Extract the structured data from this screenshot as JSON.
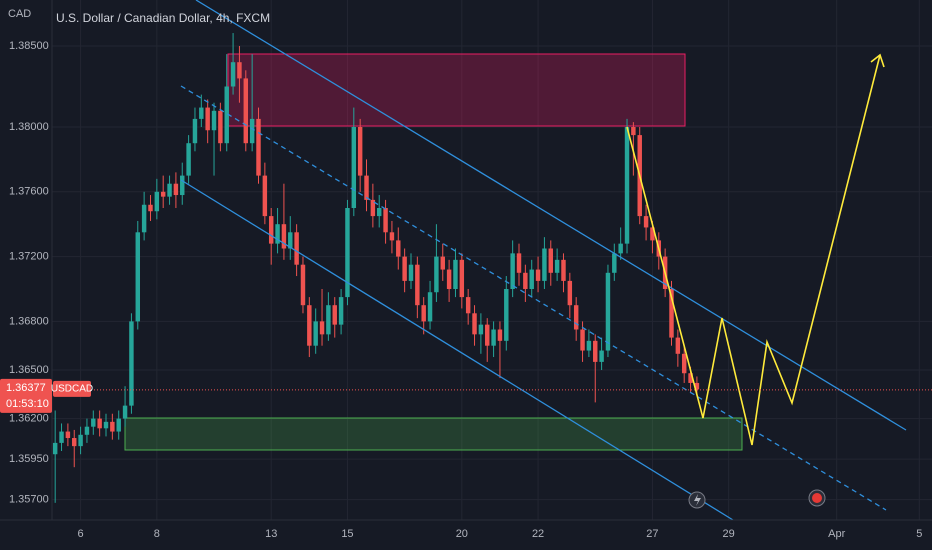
{
  "chart_data": {
    "type": "candlestick",
    "axis_label": "CAD",
    "title": "U.S. Dollar / Canadian Dollar, 4h, FXCM",
    "symbol": "USDCAD",
    "last_price": 1.36377,
    "countdown": "01:53:10",
    "up_color": "#26a69a",
    "down_color": "#ef5350",
    "grid": true,
    "ylim": [
      1.35574,
      1.38784
    ],
    "yticks": [
      {
        "value": 1.385,
        "label": "1.38500"
      },
      {
        "value": 1.38,
        "label": "1.38000"
      },
      {
        "value": 1.376,
        "label": "1.37600"
      },
      {
        "value": 1.372,
        "label": "1.37200"
      },
      {
        "value": 1.368,
        "label": "1.36800"
      },
      {
        "value": 1.365,
        "label": "1.36500"
      },
      {
        "value": 1.362,
        "label": "1.36200"
      },
      {
        "value": 1.3595,
        "label": "1.35950"
      },
      {
        "value": 1.357,
        "label": "1.35700"
      }
    ],
    "xlim": [
      -0.5,
      138
    ],
    "xticks": [
      {
        "value": 4,
        "label": "6"
      },
      {
        "value": 16,
        "label": "8"
      },
      {
        "value": 34,
        "label": "13"
      },
      {
        "value": 46,
        "label": "15"
      },
      {
        "value": 64,
        "label": "20"
      },
      {
        "value": 76,
        "label": "22"
      },
      {
        "value": 94,
        "label": "27"
      },
      {
        "value": 106,
        "label": "29"
      },
      {
        "value": 123,
        "label": "Apr"
      },
      {
        "value": 136,
        "label": "5"
      }
    ],
    "open": [
      1.3598,
      1.3605,
      1.3612,
      1.3608,
      1.3603,
      1.361,
      1.3615,
      1.362,
      1.3614,
      1.3618,
      1.3612,
      1.362,
      1.3628,
      1.368,
      1.3735,
      1.3752,
      1.3748,
      1.376,
      1.3757,
      1.3765,
      1.3758,
      1.377,
      1.379,
      1.3805,
      1.3812,
      1.3798,
      1.381,
      1.379,
      1.3825,
      1.384,
      1.383,
      1.379,
      1.3805,
      1.377,
      1.3745,
      1.3728,
      1.374,
      1.3725,
      1.3735,
      1.3715,
      1.369,
      1.3665,
      1.368,
      1.3672,
      1.369,
      1.3678,
      1.3695,
      1.375,
      1.38,
      1.377,
      1.3755,
      1.3745,
      1.375,
      1.3735,
      1.373,
      1.372,
      1.3705,
      1.3715,
      1.369,
      1.368,
      1.3698,
      1.372,
      1.3712,
      1.37,
      1.3718,
      1.3695,
      1.3685,
      1.3672,
      1.3678,
      1.3665,
      1.3675,
      1.3668,
      1.37,
      1.3722,
      1.371,
      1.37,
      1.3712,
      1.3705,
      1.3725,
      1.371,
      1.3718,
      1.3705,
      1.369,
      1.3675,
      1.3662,
      1.3668,
      1.3655,
      1.3662,
      1.371,
      1.3722,
      1.3728,
      1.38,
      1.3795,
      1.3745,
      1.3738,
      1.373,
      1.372,
      1.37,
      1.367,
      1.366,
      1.3648,
      1.3642
    ],
    "high": [
      1.3625,
      1.3617,
      1.3617,
      1.3613,
      1.3615,
      1.362,
      1.3625,
      1.3625,
      1.3623,
      1.3623,
      1.3625,
      1.364,
      1.3685,
      1.3742,
      1.376,
      1.3758,
      1.3768,
      1.377,
      1.377,
      1.3772,
      1.3778,
      1.3795,
      1.3812,
      1.382,
      1.3817,
      1.3815,
      1.3815,
      1.3845,
      1.3858,
      1.385,
      1.3835,
      1.3845,
      1.3812,
      1.3778,
      1.375,
      1.375,
      1.3765,
      1.3745,
      1.374,
      1.372,
      1.3695,
      1.3688,
      1.37,
      1.3698,
      1.3695,
      1.37,
      1.3755,
      1.3812,
      1.3805,
      1.378,
      1.3765,
      1.3758,
      1.3755,
      1.3742,
      1.3738,
      1.3725,
      1.3722,
      1.372,
      1.3695,
      1.3705,
      1.374,
      1.3728,
      1.3718,
      1.3725,
      1.3722,
      1.37,
      1.369,
      1.3685,
      1.3682,
      1.368,
      1.368,
      1.3708,
      1.373,
      1.3728,
      1.3715,
      1.3718,
      1.372,
      1.3732,
      1.373,
      1.3725,
      1.3722,
      1.371,
      1.3695,
      1.368,
      1.3675,
      1.3672,
      1.367,
      1.3715,
      1.3728,
      1.3738,
      1.3805,
      1.3803,
      1.38,
      1.3752,
      1.3742,
      1.3735,
      1.3725,
      1.3705,
      1.3675,
      1.3665,
      1.3652,
      1.3646
    ],
    "low": [
      1.3568,
      1.36,
      1.3603,
      1.359,
      1.3598,
      1.3605,
      1.361,
      1.3609,
      1.3609,
      1.3607,
      1.3607,
      1.3615,
      1.3623,
      1.3675,
      1.373,
      1.3742,
      1.3743,
      1.375,
      1.3752,
      1.375,
      1.3752,
      1.3765,
      1.3785,
      1.38,
      1.379,
      1.377,
      1.3785,
      1.3785,
      1.382,
      1.3815,
      1.3785,
      1.3785,
      1.3765,
      1.374,
      1.3715,
      1.3722,
      1.3718,
      1.3718,
      1.3708,
      1.3685,
      1.3658,
      1.366,
      1.3665,
      1.3668,
      1.367,
      1.3672,
      1.369,
      1.3745,
      1.376,
      1.3748,
      1.3738,
      1.3738,
      1.3728,
      1.3722,
      1.3712,
      1.3698,
      1.37,
      1.3682,
      1.3672,
      1.3675,
      1.3692,
      1.3705,
      1.3692,
      1.3695,
      1.3688,
      1.3678,
      1.3665,
      1.366,
      1.3655,
      1.3658,
      1.3645,
      1.3662,
      1.3695,
      1.3702,
      1.3692,
      1.3695,
      1.3698,
      1.37,
      1.3702,
      1.3705,
      1.3698,
      1.3682,
      1.3668,
      1.3655,
      1.3658,
      1.363,
      1.365,
      1.3658,
      1.3705,
      1.3718,
      1.3722,
      1.377,
      1.374,
      1.373,
      1.3722,
      1.3712,
      1.3695,
      1.3665,
      1.3652,
      1.3642,
      1.3636,
      1.3634
    ],
    "close": [
      1.3605,
      1.3612,
      1.3608,
      1.3603,
      1.361,
      1.3615,
      1.362,
      1.3614,
      1.3618,
      1.3612,
      1.362,
      1.3628,
      1.368,
      1.3735,
      1.3752,
      1.3748,
      1.376,
      1.3757,
      1.3765,
      1.3758,
      1.377,
      1.379,
      1.3805,
      1.3812,
      1.3798,
      1.381,
      1.379,
      1.3825,
      1.384,
      1.383,
      1.379,
      1.3805,
      1.377,
      1.3745,
      1.3728,
      1.374,
      1.3725,
      1.3735,
      1.3715,
      1.369,
      1.3665,
      1.368,
      1.3672,
      1.369,
      1.3678,
      1.3695,
      1.375,
      1.38,
      1.377,
      1.3755,
      1.3745,
      1.375,
      1.3735,
      1.373,
      1.372,
      1.3705,
      1.3715,
      1.369,
      1.368,
      1.3698,
      1.372,
      1.3712,
      1.37,
      1.3718,
      1.3695,
      1.3685,
      1.3672,
      1.3678,
      1.3665,
      1.3675,
      1.3668,
      1.37,
      1.3722,
      1.371,
      1.37,
      1.3712,
      1.3705,
      1.3725,
      1.371,
      1.3718,
      1.3705,
      1.369,
      1.3675,
      1.3662,
      1.3668,
      1.3655,
      1.3662,
      1.371,
      1.3722,
      1.3728,
      1.38,
      1.3795,
      1.3745,
      1.3738,
      1.373,
      1.372,
      1.37,
      1.367,
      1.366,
      1.3648,
      1.3642,
      1.3638
    ]
  }
}
